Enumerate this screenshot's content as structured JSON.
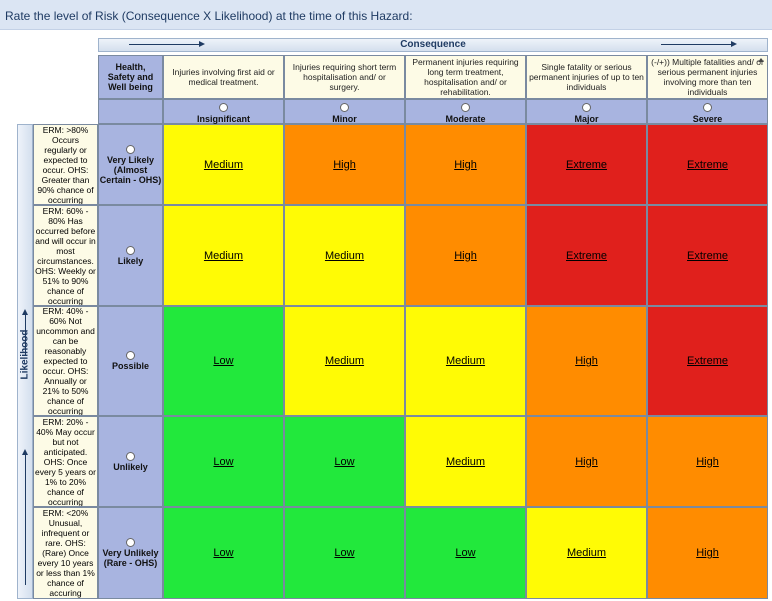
{
  "page": {
    "title": "Rate the level of Risk (Consequence X Likelihood) at the time of this Hazard:"
  },
  "axes": {
    "consequence": "Consequence",
    "likelihood": "Likelihood"
  },
  "corner_header": "Health, Safety and Well being",
  "consequences": [
    {
      "label": "Insignificant",
      "desc": "Injuries involving first aid or medical treatment."
    },
    {
      "label": "Minor",
      "desc": "Injuries requiring short term hospitalisation and/ or surgery."
    },
    {
      "label": "Moderate",
      "desc": "Permanent injuries requiring long term treatment, hospitalisation and/ or rehabilitation."
    },
    {
      "label": "Major",
      "desc": "Single fatality or serious permanent injuries of up to ten individuals"
    },
    {
      "label": "Severe",
      "desc": "(-/+)) Multiple fatalities and/ or serious permanent injuries involving more than ten individuals"
    }
  ],
  "likelihoods": [
    {
      "label": "Very Likely (Almost Certain - OHS)",
      "desc": "ERM: >80% Occurs regularly or expected to occur. OHS: Greater than 90% chance of occurring"
    },
    {
      "label": "Likely",
      "desc": "ERM: 60% - 80% Has occurred before and will occur in most circumstances. OHS: Weekly or 51% to 90% chance of occurring"
    },
    {
      "label": "Possible",
      "desc": "ERM: 40% - 60% Not uncommon and can be reasonably expected to occur. OHS: Annually or 21% to 50% chance of occurring"
    },
    {
      "label": "Unlikely",
      "desc": "ERM: 20% - 40% May occur but not anticipated. OHS: Once every 5 years or 1% to 20% chance of occurring"
    },
    {
      "label": "Very Unlikely (Rare - OHS)",
      "desc": "ERM: <20% Unusual, infrequent or rare. OHS: (Rare) Once every 10 years or less than 1% chance of accuring"
    }
  ],
  "matrix": [
    [
      "Medium",
      "High",
      "High",
      "Extreme",
      "Extreme"
    ],
    [
      "Medium",
      "Medium",
      "High",
      "Extreme",
      "Extreme"
    ],
    [
      "Low",
      "Medium",
      "Medium",
      "High",
      "Extreme"
    ],
    [
      "Low",
      "Low",
      "Medium",
      "High",
      "High"
    ],
    [
      "Low",
      "Low",
      "Low",
      "Medium",
      "High"
    ]
  ],
  "colors": {
    "Low": "#22e83c",
    "Medium": "#fffb05",
    "High": "#ff8c00",
    "Extreme": "#e0201c"
  },
  "icons": {
    "scroll_up": "scroll-up-arrow-icon",
    "consequence_arrow": "right-arrow-icon",
    "likelihood_arrow": "up-arrow-icon",
    "radio": "radio-button-icon"
  }
}
